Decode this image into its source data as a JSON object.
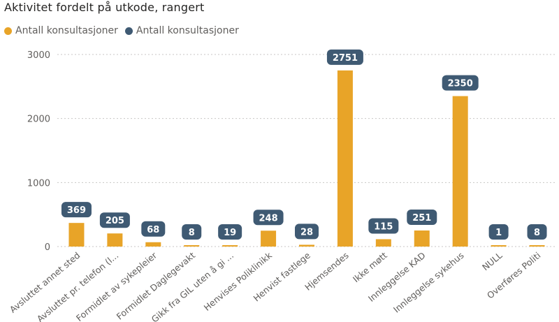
{
  "title": "Aktivitet fordelt på utkode, rangert",
  "legend": [
    {
      "label": "Antall konsultasjoner",
      "color": "#E8A428"
    },
    {
      "label": "Antall konsultasjoner",
      "color": "#3F5A73"
    }
  ],
  "colors": {
    "bar": "#E8A428",
    "badge": "#3F5A73",
    "grid": "#C8C6C4",
    "axis_text": "#605e5c"
  },
  "chart_data": {
    "type": "bar",
    "title": "Aktivitet fordelt på utkode, rangert",
    "categories": [
      "Avsluttet annet sted",
      "Avsluttet pr. telefon (l...",
      "Formidlet av sykepleier",
      "Formidlet Daglegevakt",
      "Gikk fra GIL uten å gi ...",
      "Henvises Poliklinikk",
      "Henvist fastlege",
      "Hjemsendes",
      "Ikke møtt",
      "Innleggelse KAD",
      "Innleggelse sykehus",
      "NULL",
      "Overføres Politi"
    ],
    "series": [
      {
        "name": "Antall konsultasjoner",
        "values": [
          369,
          205,
          68,
          8,
          19,
          248,
          28,
          2751,
          115,
          251,
          2350,
          1,
          8
        ]
      }
    ],
    "yticks": [
      0,
      1000,
      2000,
      3000
    ],
    "ylim": [
      0,
      3000
    ],
    "grid": true,
    "legend_position": "top-left"
  }
}
